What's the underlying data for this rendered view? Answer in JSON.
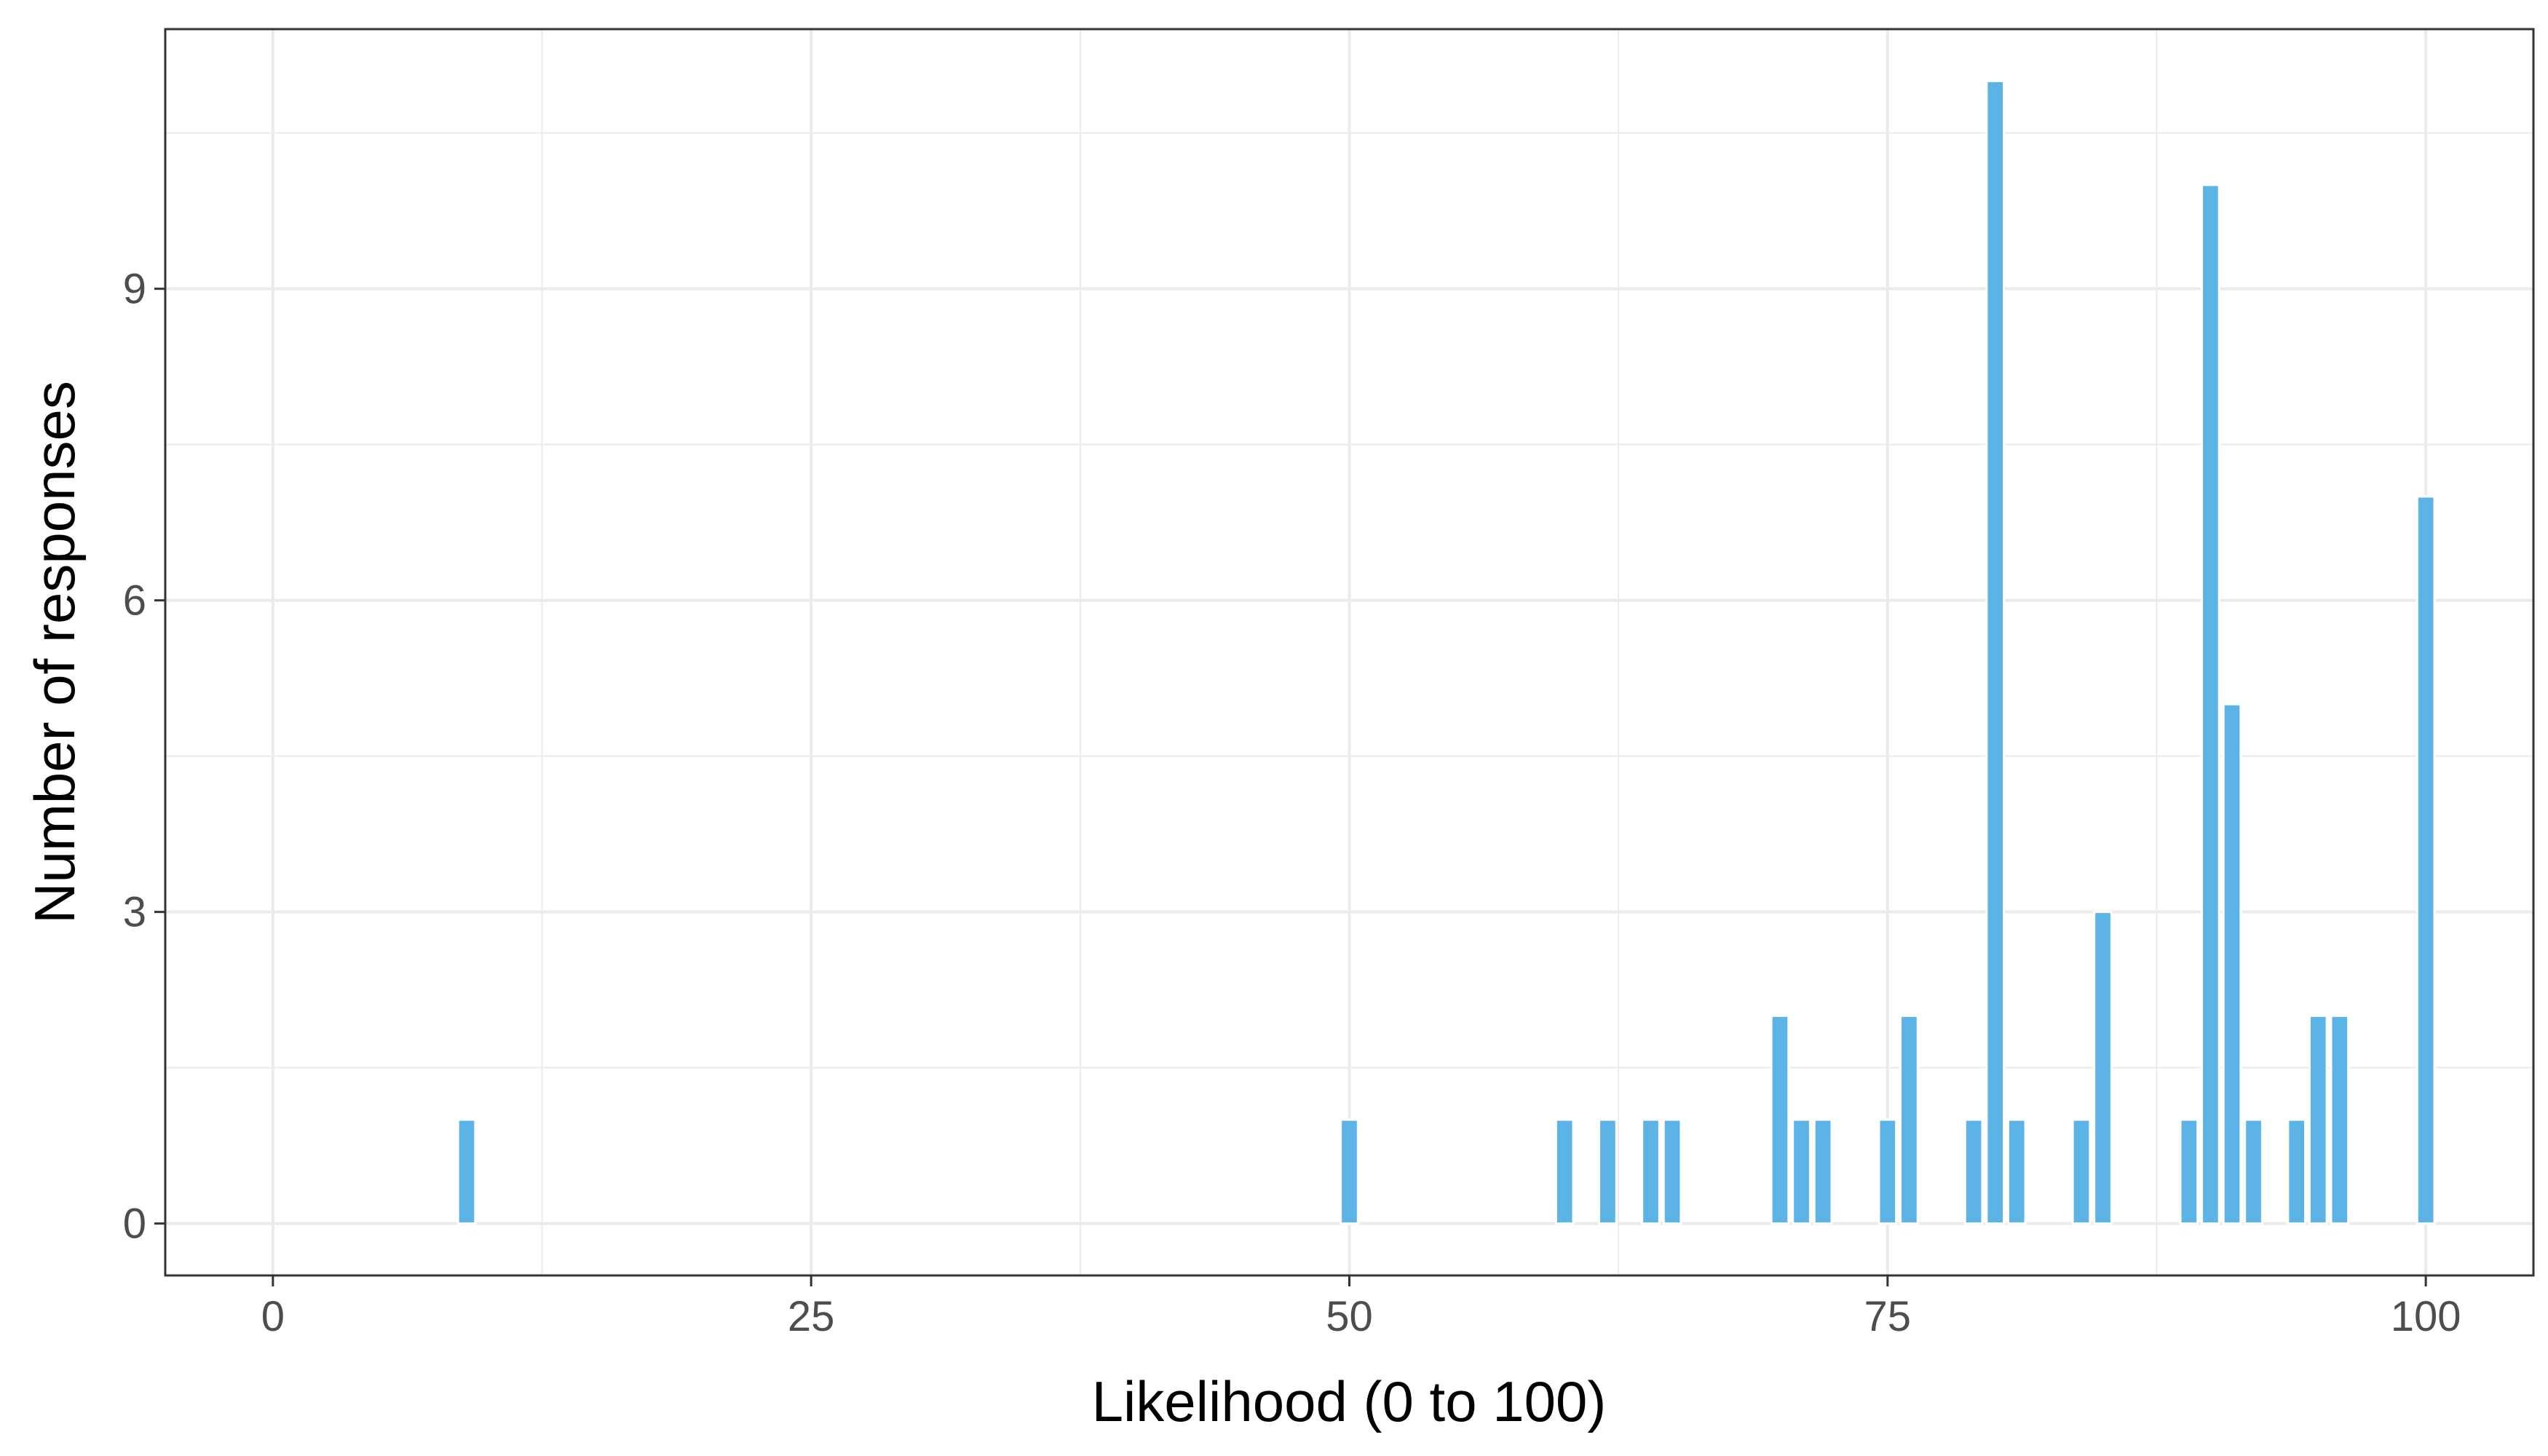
{
  "chart_data": {
    "type": "bar",
    "title": "",
    "xlabel": "Likelihood (0 to 100)",
    "ylabel": "Number of responses",
    "xlim": [
      -5,
      105
    ],
    "ylim": [
      -0.5,
      11.5
    ],
    "x_ticks": [
      0,
      25,
      50,
      75,
      100
    ],
    "y_ticks": [
      0,
      3,
      6,
      9
    ],
    "x_minor_grid": [
      12.5,
      37.5,
      62.5,
      87.5
    ],
    "y_minor_grid": [
      1.5,
      4.5,
      7.5,
      10.5
    ],
    "grid": true,
    "bar_color": "#5BB4E5",
    "grid_color": "#EBEBEB",
    "border_color": "#333333",
    "x": [
      0,
      1,
      2,
      3,
      4,
      5,
      6,
      7,
      8,
      9,
      10,
      11,
      12,
      13,
      14,
      15,
      16,
      17,
      18,
      19,
      20,
      21,
      22,
      23,
      24,
      25,
      26,
      27,
      28,
      29,
      30,
      31,
      32,
      33,
      34,
      35,
      36,
      37,
      38,
      39,
      40,
      41,
      42,
      43,
      44,
      45,
      46,
      47,
      48,
      49,
      50,
      51,
      52,
      53,
      54,
      55,
      56,
      57,
      58,
      59,
      60,
      61,
      62,
      63,
      64,
      65,
      66,
      67,
      68,
      69,
      70,
      71,
      72,
      73,
      74,
      75,
      76,
      77,
      78,
      79,
      80,
      81,
      82,
      83,
      84,
      85,
      86,
      87,
      88,
      89,
      90,
      91,
      92,
      93,
      94,
      95,
      96,
      97,
      98,
      99,
      100
    ],
    "values": [
      0,
      0,
      0,
      0,
      0,
      0,
      0,
      0,
      0,
      1,
      0,
      0,
      0,
      0,
      0,
      0,
      0,
      0,
      0,
      0,
      0,
      0,
      0,
      0,
      0,
      0,
      0,
      0,
      0,
      0,
      0,
      0,
      0,
      0,
      0,
      0,
      0,
      0,
      0,
      0,
      0,
      0,
      0,
      0,
      0,
      0,
      0,
      0,
      0,
      0,
      1,
      0,
      0,
      0,
      0,
      0,
      0,
      0,
      0,
      0,
      1,
      0,
      1,
      0,
      1,
      1,
      0,
      0,
      0,
      0,
      2,
      1,
      1,
      0,
      0,
      1,
      2,
      0,
      0,
      1,
      11,
      1,
      0,
      0,
      1,
      3,
      0,
      0,
      0,
      1,
      10,
      5,
      1,
      0,
      1,
      2,
      2,
      0,
      0,
      0,
      7
    ]
  }
}
